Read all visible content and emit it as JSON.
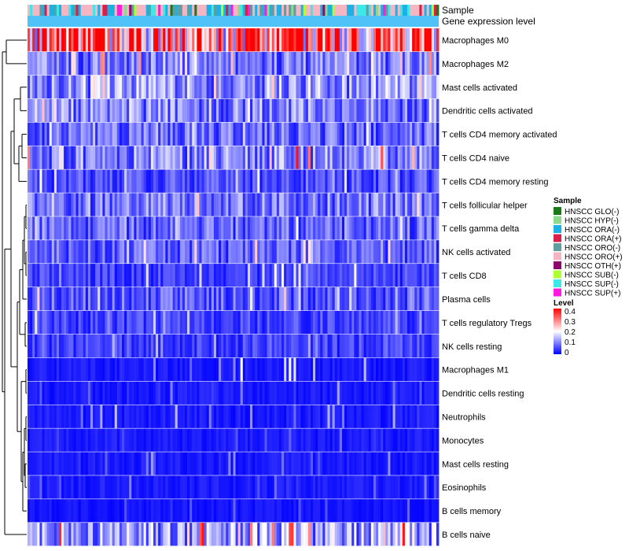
{
  "chart_data": {
    "type": "heatmap",
    "title": "",
    "annotation_tracks": [
      "Sample",
      "Gene expression level"
    ],
    "row_labels": [
      "Macrophages M0",
      "Macrophages M2",
      "Mast cells activated",
      "Dendritic cells activated",
      "T cells CD4 memory activated",
      "T cells CD4 naive",
      "T cells CD4 memory resting",
      "T cells follicular helper",
      "T cells gamma delta",
      "NK cells activated",
      "T cells CD8",
      "Plasma cells",
      "T cells regulatory  Tregs",
      "NK cells resting",
      "Macrophages M1",
      "Dendritic cells resting",
      "Neutrophils",
      "Monocytes",
      "Mast cells resting",
      "Eosinophils",
      "B cells memory",
      "B cells naive"
    ],
    "row_mean_levels": [
      0.33,
      0.09,
      0.11,
      0.1,
      0.08,
      0.1,
      0.06,
      0.09,
      0.08,
      0.07,
      0.05,
      0.07,
      0.05,
      0.05,
      0.02,
      0.02,
      0.02,
      0.02,
      0.02,
      0.02,
      0.015,
      0.12
    ],
    "row_max_levels": [
      0.4,
      0.3,
      0.25,
      0.25,
      0.2,
      0.4,
      0.2,
      0.25,
      0.2,
      0.25,
      0.2,
      0.25,
      0.2,
      0.15,
      0.2,
      0.15,
      0.15,
      0.1,
      0.12,
      0.1,
      0.08,
      0.4
    ],
    "sample_column_count": 170,
    "legend_sample": {
      "title": "Sample",
      "entries": [
        {
          "label": "HNSCC GLO(-)",
          "color": "#1a7a1a"
        },
        {
          "label": "HNSCC HYP(-)",
          "color": "#8fd98f"
        },
        {
          "label": "HNSCC ORA(-)",
          "color": "#1ab2e6"
        },
        {
          "label": "HNSCC ORA(+)",
          "color": "#d81e4a"
        },
        {
          "label": "HNSCC ORO(-)",
          "color": "#5f9ea0"
        },
        {
          "label": "HNSCC ORO(+)",
          "color": "#f4b6c2"
        },
        {
          "label": "HNSCC OTH(+)",
          "color": "#8b0a6a"
        },
        {
          "label": "HNSCC SUB(-)",
          "color": "#adff2f"
        },
        {
          "label": "HNSCC SUP(-)",
          "color": "#3de8e8"
        },
        {
          "label": "HNSCC SUP(+)",
          "color": "#ff1adf"
        }
      ]
    },
    "legend_level": {
      "title": "Level",
      "ticks": [
        "0.4",
        "0.3",
        "0.2",
        "0.1",
        "0"
      ],
      "range": [
        0,
        0.4
      ],
      "colors": {
        "low": "#0000ff",
        "mid": "#ffffff",
        "high": "#ff0000"
      }
    },
    "gene_expression_track_color": "#4fc3f7"
  }
}
